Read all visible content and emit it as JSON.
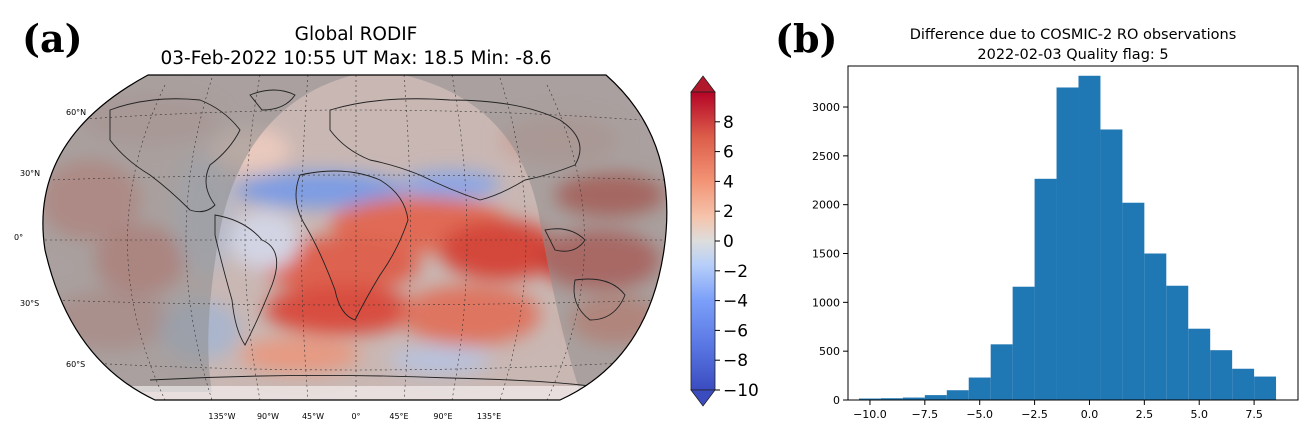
{
  "panel_a": {
    "label": "(a)",
    "title_line1": "Global RODIF",
    "title_line2": "03-Feb-2022 10:55 UT  Max: 18.5 Min: -8.6",
    "lat_labels": [
      "60°N",
      "30°N",
      "0°",
      "30°S",
      "60°S"
    ],
    "lon_labels": [
      "135°W",
      "90°W",
      "45°W",
      "0°",
      "45°E",
      "90°E",
      "135°E"
    ],
    "colorbar": {
      "ticks": [
        "8",
        "6",
        "4",
        "2",
        "0",
        "−2",
        "−4",
        "−6",
        "−8",
        "−10"
      ],
      "vmin": -10,
      "vmax": 10,
      "cmap": "coolwarm",
      "colors": {
        "low": "#3b4cc0",
        "mid": "#dddddd",
        "high": "#b40426",
        "ext_high": "#b2182b",
        "ext_low": "#3b4cc0"
      }
    }
  },
  "panel_b": {
    "label": "(b)"
  },
  "chart_data": [
    {
      "type": "heatmap",
      "title": "Global RODIF",
      "subtitle": "03-Feb-2022 10:55 UT  Max: 18.5 Min: -8.6",
      "projection": "Robinson",
      "colorbar_range": [
        -10,
        10
      ],
      "note_colors": {
        "nighttime_mask": "#9e9e9e",
        "daytime_region": "#f2f2f2"
      }
    },
    {
      "type": "bar",
      "title": "Difference due to COSMIC-2 RO observations",
      "subtitle": "2022-02-03    Quality flag: 5",
      "xlabel": "",
      "ylabel": "",
      "bin_edges": [
        -10.5,
        -9.5,
        -8.5,
        -7.5,
        -6.5,
        -5.5,
        -4.5,
        -3.5,
        -2.5,
        -1.5,
        -0.5,
        0.5,
        1.5,
        2.5,
        3.5,
        4.5,
        5.5,
        6.5,
        7.5,
        8.5,
        9.0
      ],
      "values": [
        15,
        18,
        25,
        50,
        100,
        230,
        570,
        1160,
        2265,
        3200,
        3320,
        2770,
        2020,
        1500,
        1170,
        730,
        510,
        320,
        240,
        0
      ],
      "xlim": [
        -11,
        9.5
      ],
      "ylim": [
        0,
        3420
      ],
      "xticks": [
        "−10.0",
        "−7.5",
        "−5.0",
        "−2.5",
        "0.0",
        "2.5",
        "5.0",
        "7.5"
      ],
      "xtick_values": [
        -10,
        -7.5,
        -5,
        -2.5,
        0,
        2.5,
        5,
        7.5
      ],
      "yticks": [
        "0",
        "500",
        "1000",
        "1500",
        "2000",
        "2500",
        "3000"
      ],
      "ytick_values": [
        0,
        500,
        1000,
        1500,
        2000,
        2500,
        3000
      ],
      "bar_color": "#1f77b4",
      "grid": false
    }
  ]
}
